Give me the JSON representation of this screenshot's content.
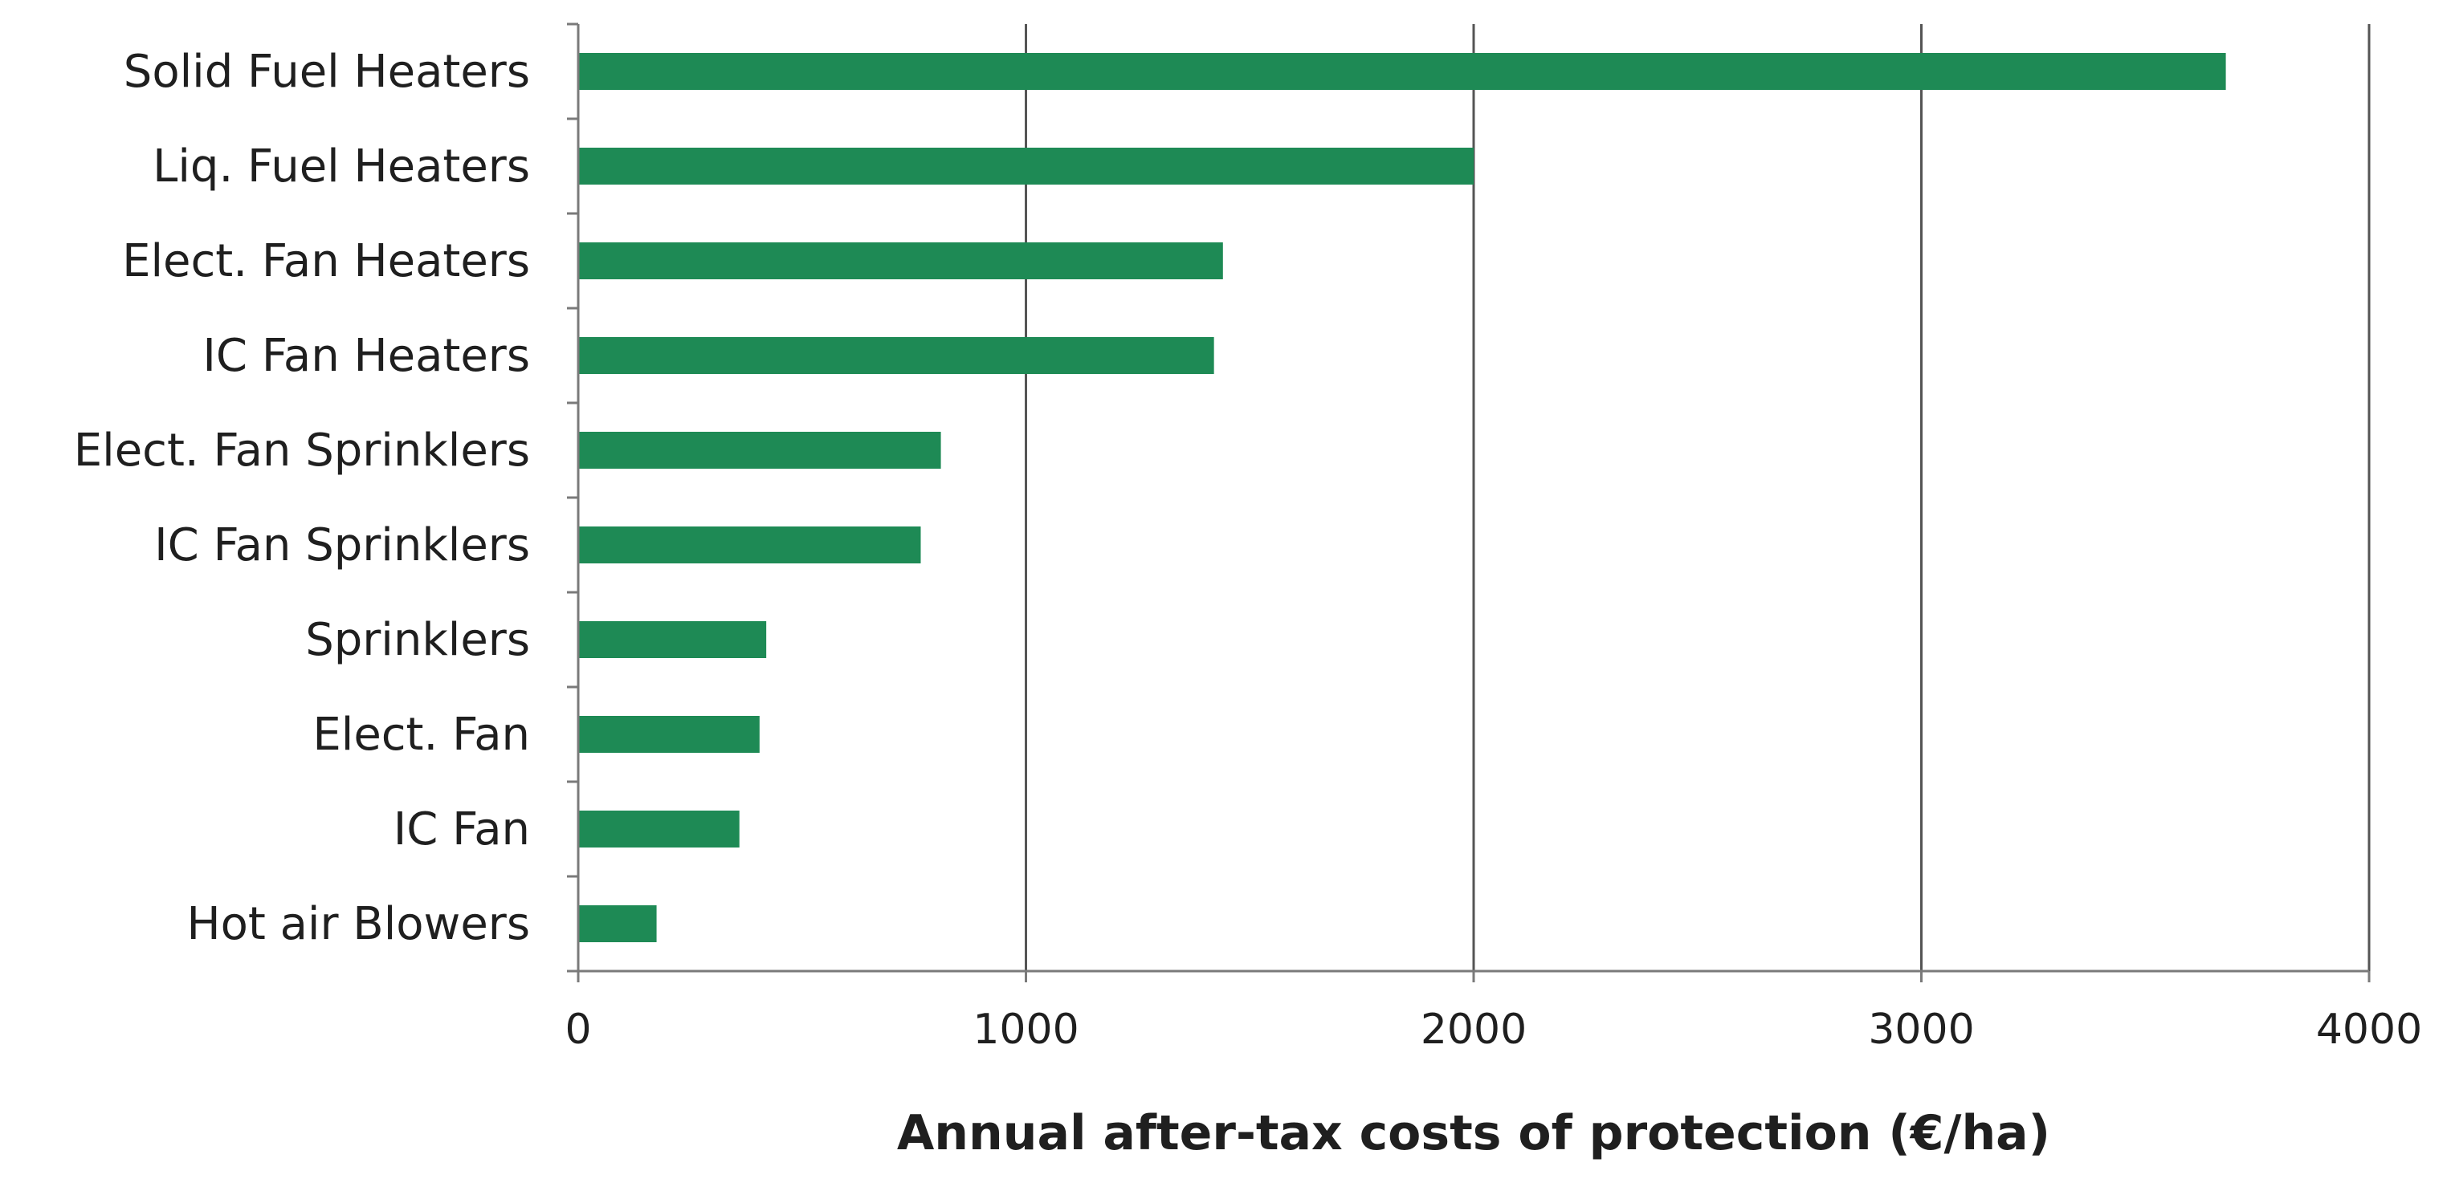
{
  "chart_data": {
    "type": "bar",
    "orientation": "horizontal",
    "title": "",
    "xlabel": "Annual after-tax costs of protection (€/ha)",
    "ylabel": "",
    "categories": [
      "Solid Fuel Heaters",
      "Liq. Fuel Heaters",
      "Elect. Fan Heaters",
      "IC Fan Heaters",
      "Elect. Fan Sprinklers",
      "IC Fan Sprinklers",
      "Sprinklers",
      "Elect. Fan",
      "IC Fan",
      "Hot air Blowers"
    ],
    "values": [
      3680,
      2000,
      1440,
      1420,
      810,
      765,
      420,
      405,
      360,
      175
    ],
    "xlim": [
      0,
      4000
    ],
    "xticks": [
      0,
      1000,
      2000,
      3000,
      4000
    ],
    "xtick_labels": [
      "0",
      "1000",
      "2000",
      "3000",
      "4000"
    ],
    "grid": "vertical",
    "legend": "none",
    "bar_color": "#1e8a55"
  }
}
